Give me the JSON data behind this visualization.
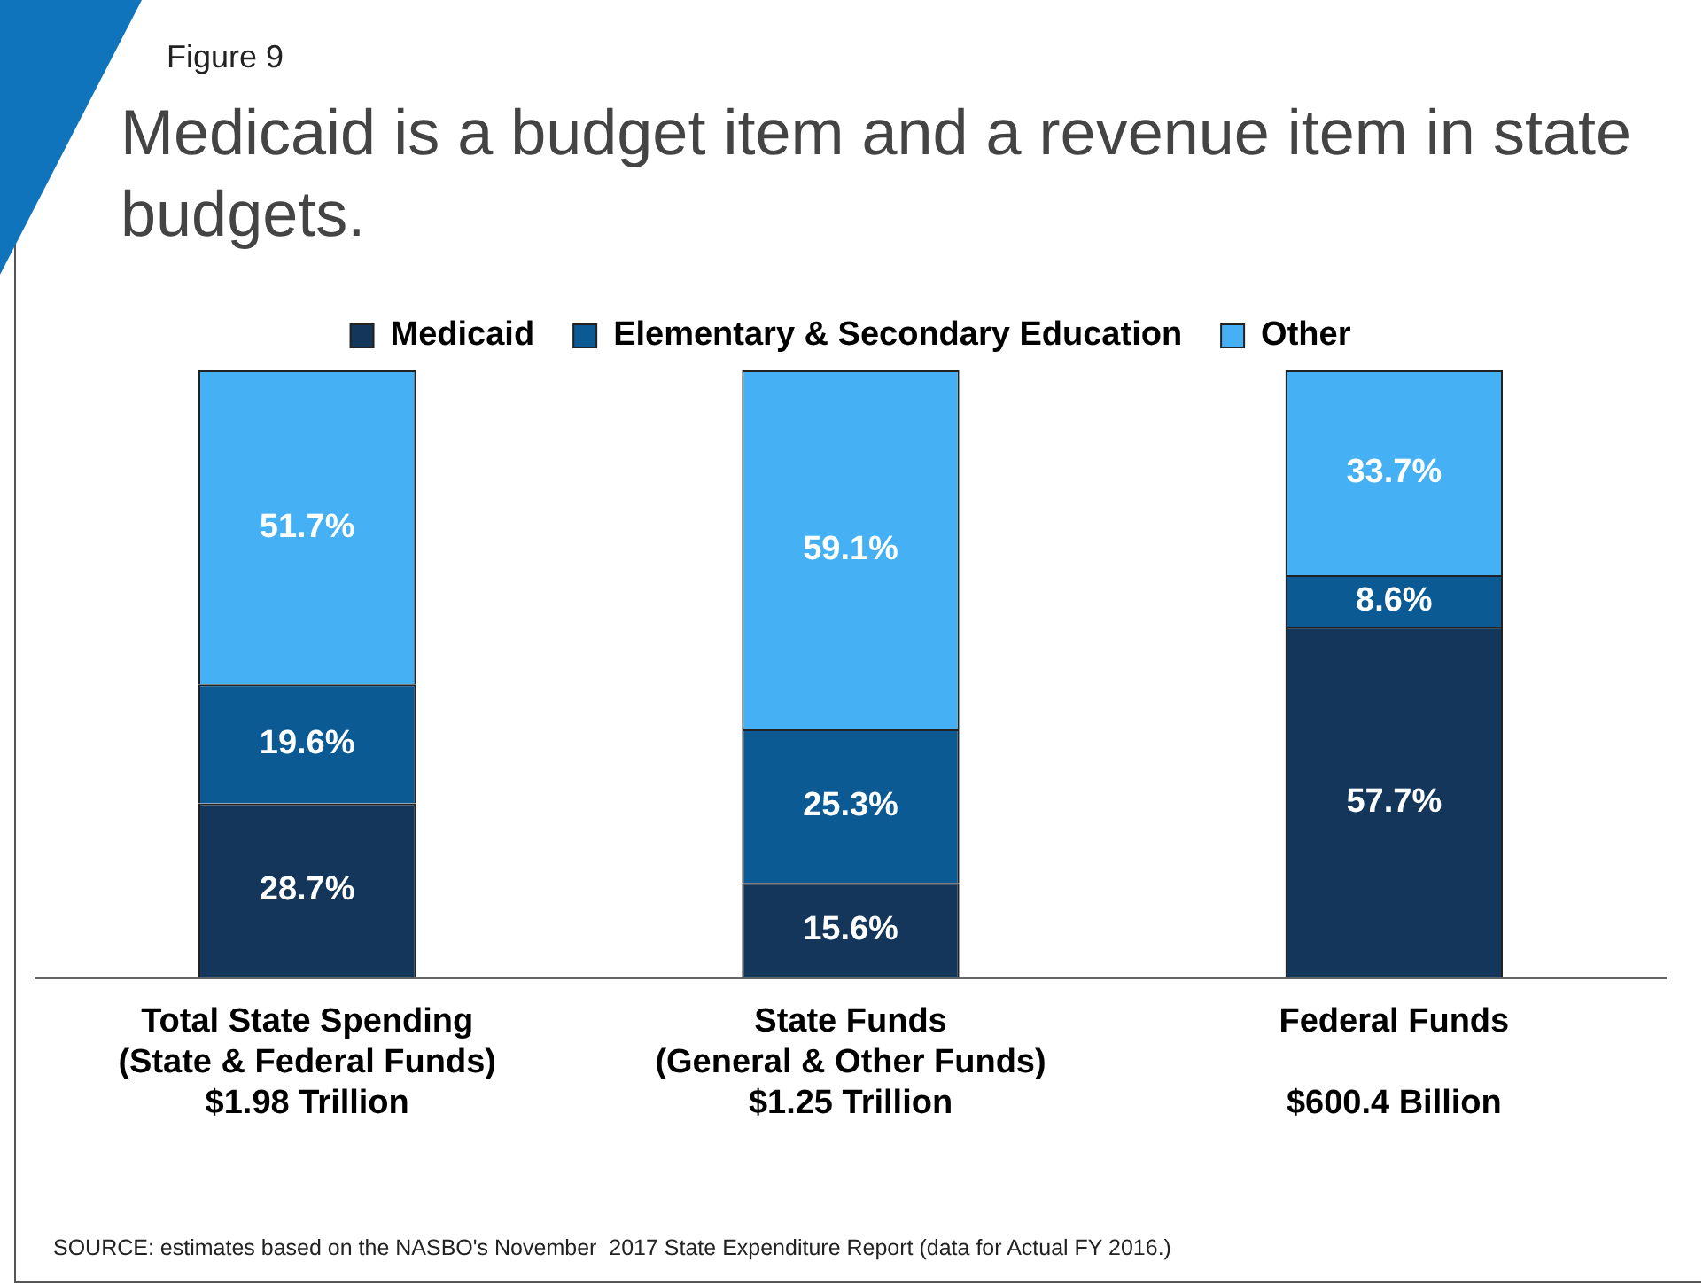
{
  "chart_data": {
    "type": "bar",
    "stacked": true,
    "subtitle": "Figure 9",
    "title": "Medicaid is a budget item and a revenue item in state budgets.",
    "categories": [
      "Total State Spending\n(State & Federal Funds)\n$1.98 Trillion",
      "State Funds\n(General & Other Funds)\n$1.25 Trillion",
      "Federal Funds\n\n$600.4 Billion"
    ],
    "series": [
      {
        "name": "Medicaid",
        "color": "#14365a",
        "values": [
          28.7,
          15.6,
          57.7
        ],
        "value_labels": [
          "28.7%",
          "15.6%",
          "57.7%"
        ]
      },
      {
        "name": "Elementary & Secondary Education",
        "color": "#0b5a94",
        "values": [
          19.6,
          25.3,
          8.6
        ],
        "value_labels": [
          "19.6%",
          "25.3%",
          "8.6%"
        ]
      },
      {
        "name": "Other",
        "color": "#45b1f4",
        "values": [
          51.7,
          59.1,
          33.7
        ],
        "value_labels": [
          "51.7%",
          "59.1%",
          "33.7%"
        ]
      }
    ],
    "legend": "top",
    "grid": false,
    "annotations": [
      "SOURCE: estimates based on the NASBO's November  2017 State Expenditure Report (data for Actual FY 2016.)"
    ]
  }
}
